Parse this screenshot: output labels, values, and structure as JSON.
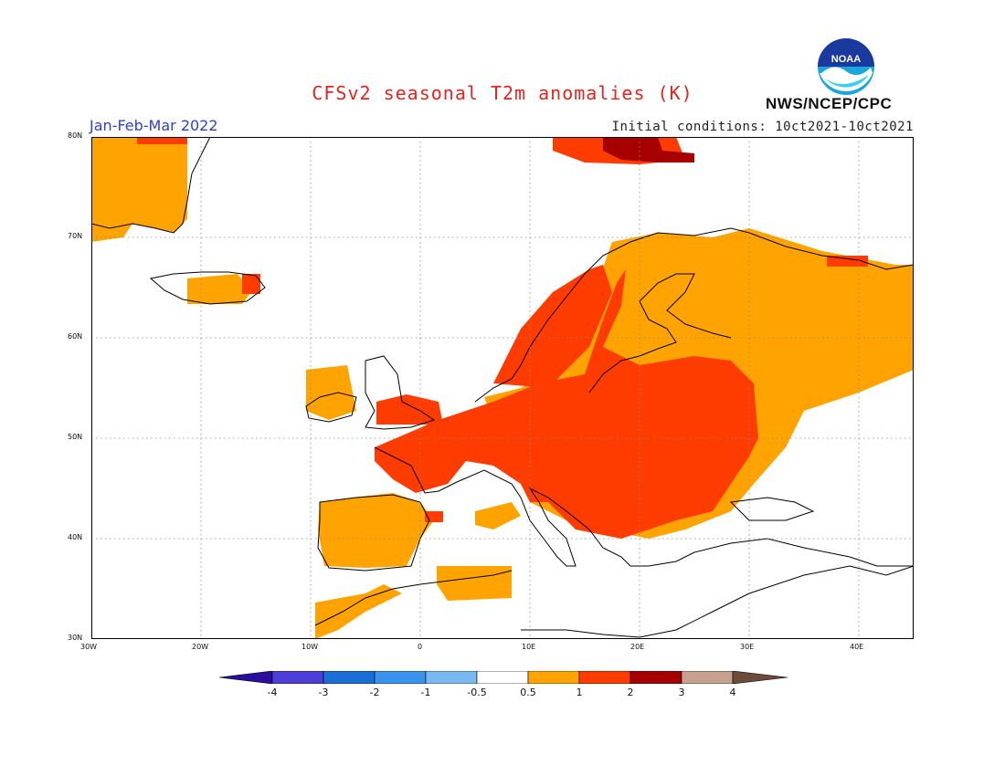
{
  "title": "CFSv2 seasonal T2m anomalies (K)",
  "period": "Jan-Feb-Mar 2022",
  "initial_conditions": "Initial conditions: 10ct2021-10ct2021",
  "agency": "NWS/NCEP/CPC",
  "logo_text": "NOAA",
  "map": {
    "lon_labels": [
      "30W",
      "20W",
      "10W",
      "0",
      "10E",
      "20E",
      "30E",
      "40E"
    ],
    "lat_labels": [
      "80N",
      "70N",
      "60N",
      "50N",
      "40N",
      "30N"
    ]
  },
  "colorbar": {
    "labels": [
      "-4",
      "-3",
      "-2",
      "-1",
      "-0.5",
      "0.5",
      "1",
      "2",
      "3",
      "4"
    ],
    "colors": [
      "#2a0f9c",
      "#4a3fd6",
      "#1a6fd6",
      "#3a93ee",
      "#7ab8f2",
      "#ffffff",
      "#ffa300",
      "#ff3c00",
      "#a60000",
      "#c8a090",
      "#6e4a3a"
    ]
  }
}
